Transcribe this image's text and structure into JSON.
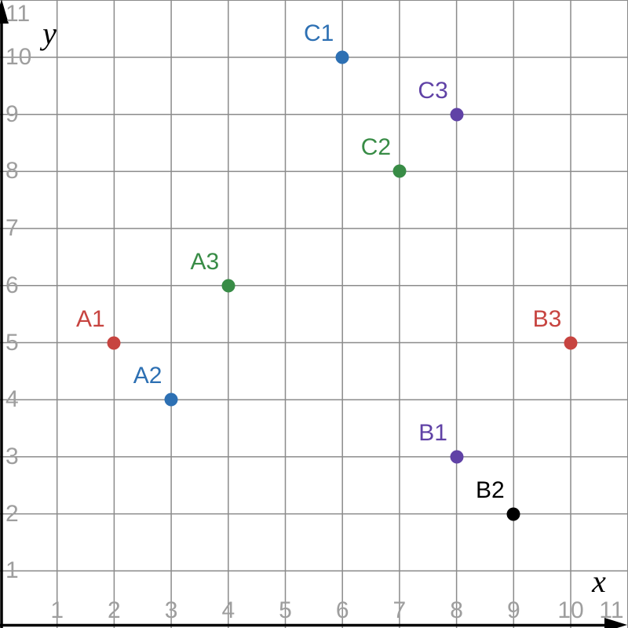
{
  "chart_data": {
    "type": "scatter",
    "title": "",
    "xlabel": "x",
    "ylabel": "y",
    "xlim": [
      0,
      11
    ],
    "ylim": [
      0,
      11
    ],
    "grid": true,
    "x_ticks": [
      1,
      2,
      3,
      4,
      5,
      6,
      7,
      8,
      9,
      10,
      11
    ],
    "y_ticks": [
      1,
      2,
      3,
      4,
      5,
      6,
      7,
      8,
      9,
      10,
      11
    ],
    "points": [
      {
        "label": "A1",
        "x": 2,
        "y": 5,
        "color": "#c74440"
      },
      {
        "label": "A2",
        "x": 3,
        "y": 4,
        "color": "#2d70b3"
      },
      {
        "label": "A3",
        "x": 4,
        "y": 6,
        "color": "#388c46"
      },
      {
        "label": "B1",
        "x": 8,
        "y": 3,
        "color": "#6042a6"
      },
      {
        "label": "B2",
        "x": 9,
        "y": 2,
        "color": "#000000"
      },
      {
        "label": "B3",
        "x": 10,
        "y": 5,
        "color": "#c74440"
      },
      {
        "label": "C1",
        "x": 6,
        "y": 10,
        "color": "#2d70b3"
      },
      {
        "label": "C2",
        "x": 7,
        "y": 8,
        "color": "#388c46"
      },
      {
        "label": "C3",
        "x": 8,
        "y": 9,
        "color": "#6042a6"
      }
    ],
    "colors": {
      "background": "#ffffff",
      "grid": "#8b8b8b",
      "tick_label": "#9e9e9e",
      "axis": "#000000"
    }
  }
}
